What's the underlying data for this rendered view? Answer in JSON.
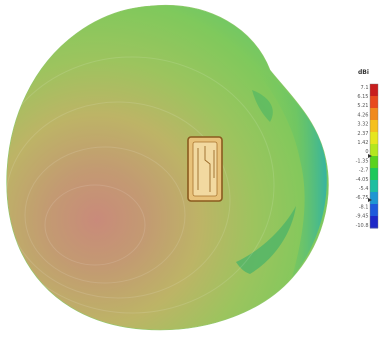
{
  "figure": {
    "description_type": "3D radiation pattern rendering",
    "colors": {
      "background": "#ffffff",
      "body_green": "#7fc95c",
      "body_yellow": "#c2c262",
      "body_red": "#c98a7a",
      "body_cyan": "#3fb9a8",
      "device_fill": "#e8c27a",
      "device_stroke": "#8a5a1e"
    },
    "colorbar": {
      "unit": "dBi",
      "colors": [
        "#c81e1e",
        "#e84a1e",
        "#f08a1e",
        "#f5c01e",
        "#e6e61e",
        "#b4e61e",
        "#5ad21e",
        "#1ec85a",
        "#1ebea0",
        "#1e96d2",
        "#1e5adc",
        "#1e28c8"
      ],
      "ticks": [
        "7.1",
        "6.15",
        "5.21",
        "4.26",
        "3.32",
        "2.37",
        "1.42",
        "0",
        "-1.35",
        "-2.7",
        "-4.05",
        "-5.4",
        "-6.75",
        "-8.1",
        "-9.45",
        "-10.8"
      ]
    }
  }
}
